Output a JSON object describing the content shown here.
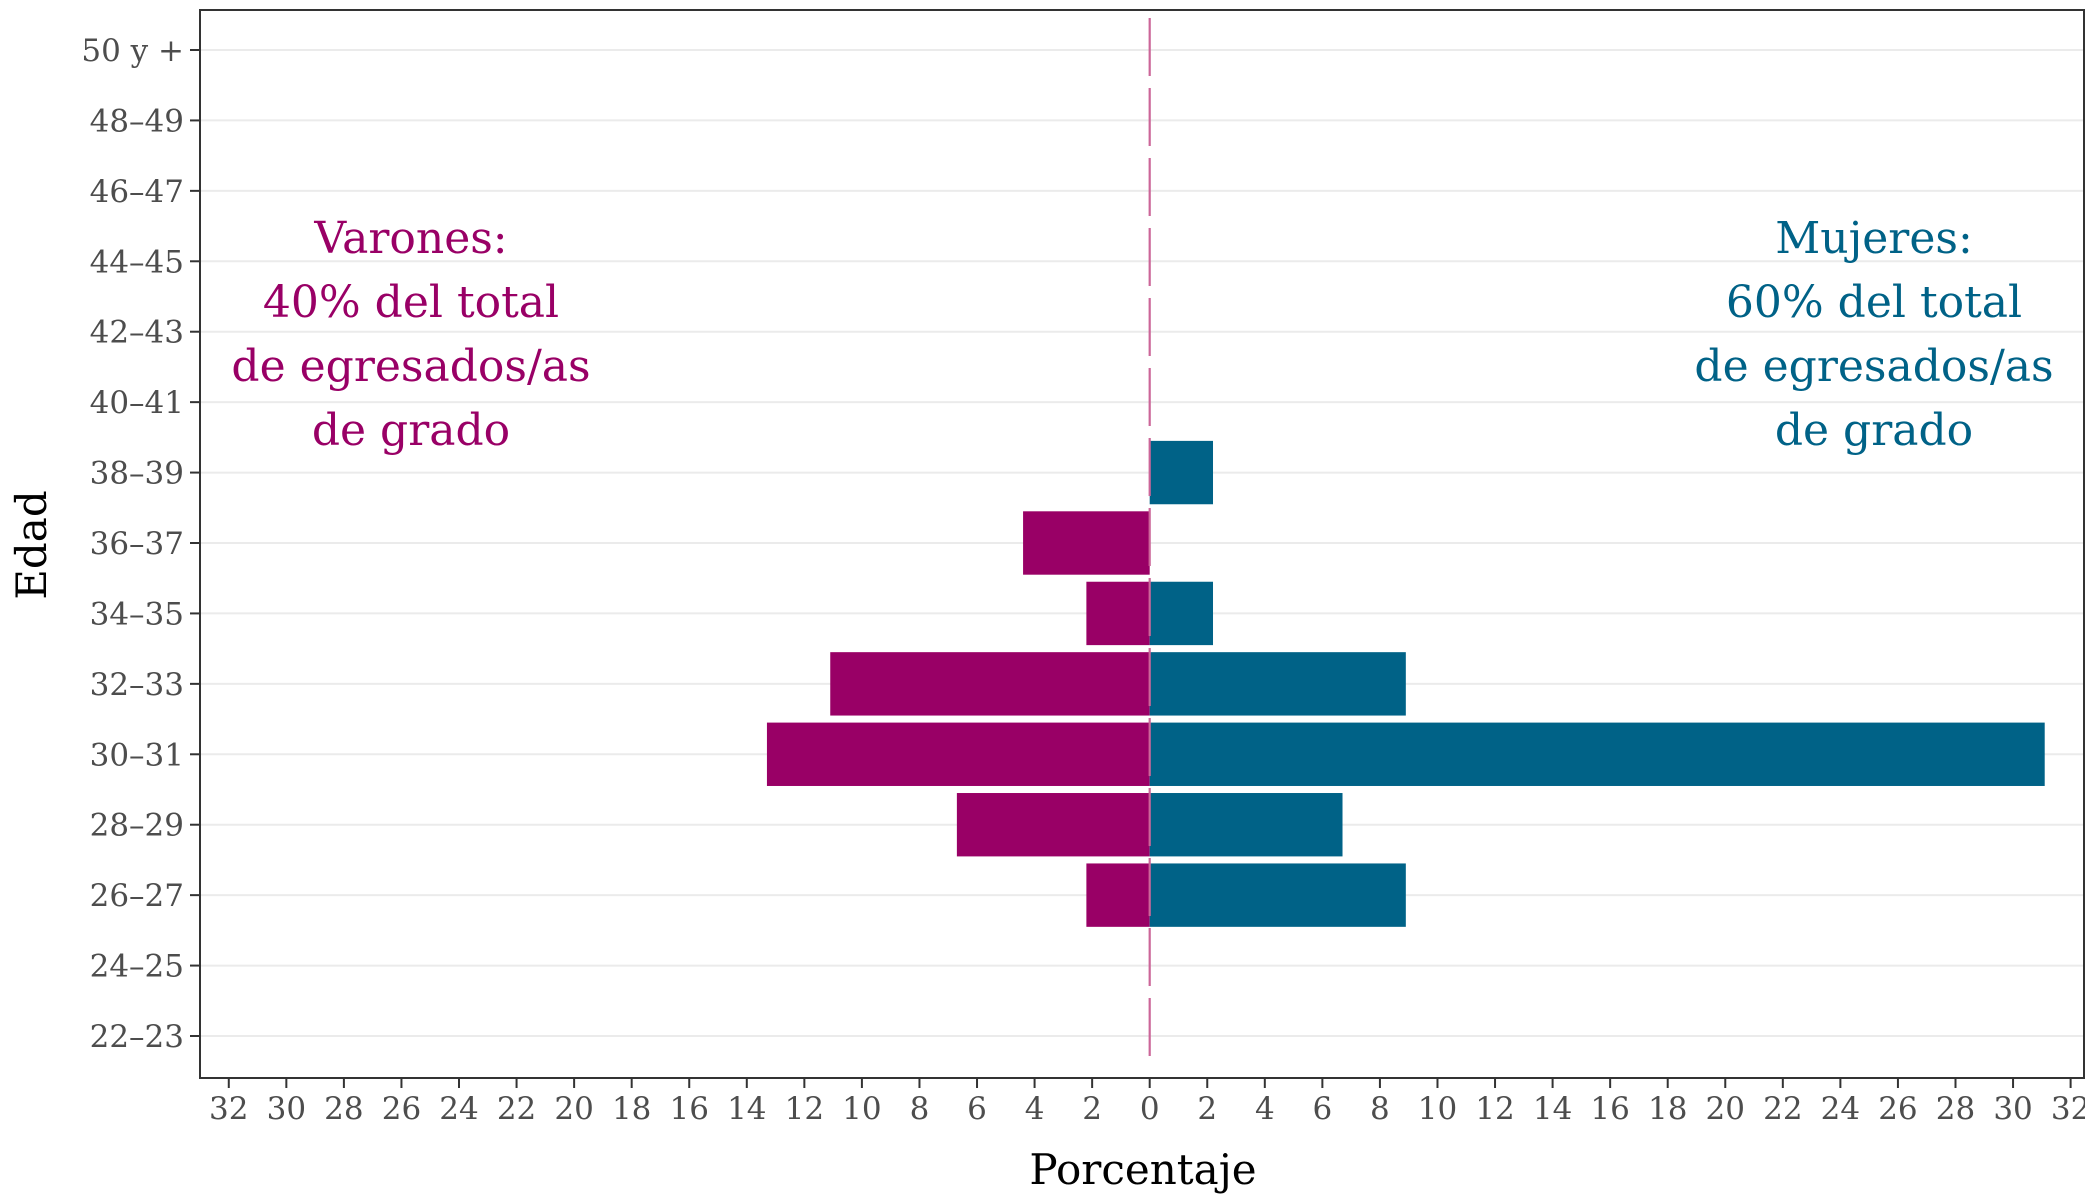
{
  "chart_data": {
    "type": "bar",
    "subtype": "population-pyramid",
    "orientation": "horizontal",
    "xlabel": "Porcentaje",
    "ylabel": "Edad",
    "categories": [
      "22–23",
      "24–25",
      "26–27",
      "28–29",
      "30–31",
      "32–33",
      "34–35",
      "36–37",
      "38–39",
      "40–41",
      "42–43",
      "44–45",
      "46–47",
      "48–49",
      "50 y +"
    ],
    "series": [
      {
        "name": "Varones",
        "side": "left",
        "color": "#990066",
        "values": [
          0,
          0,
          2.2,
          6.7,
          13.3,
          11.1,
          2.2,
          4.4,
          0,
          0,
          0,
          0,
          0,
          0,
          0
        ]
      },
      {
        "name": "Mujeres",
        "side": "right",
        "color": "#006287",
        "values": [
          0,
          0,
          8.9,
          6.7,
          31.1,
          8.9,
          2.2,
          0,
          2.2,
          0,
          0,
          0,
          0,
          0,
          0
        ]
      }
    ],
    "xlim": [
      -33,
      32.5
    ],
    "xticks": [
      -32,
      -30,
      -28,
      -26,
      -24,
      -22,
      -20,
      -18,
      -16,
      -14,
      -12,
      -10,
      -8,
      -6,
      -4,
      -2,
      0,
      2,
      4,
      6,
      8,
      10,
      12,
      14,
      16,
      18,
      20,
      22,
      24,
      26,
      28,
      30,
      32
    ],
    "xtick_labels": [
      "32",
      "30",
      "28",
      "26",
      "24",
      "22",
      "20",
      "18",
      "16",
      "14",
      "12",
      "10",
      "8",
      "6",
      "4",
      "2",
      "0",
      "2",
      "4",
      "6",
      "8",
      "10",
      "12",
      "14",
      "16",
      "18",
      "20",
      "22",
      "24",
      "26",
      "28",
      "30",
      "32"
    ],
    "grid": {
      "horizontal": true,
      "vertical": false
    },
    "zero_line": {
      "style": "dashed",
      "color": "#cc6699"
    },
    "annotations": [
      {
        "side": "left",
        "lines": [
          "Varones:",
          "40% del total",
          "de egresados/as",
          "de grado"
        ],
        "color": "#990066"
      },
      {
        "side": "right",
        "lines": [
          "Mujeres:",
          "60% del total",
          "de egresados/as",
          "de grado"
        ],
        "color": "#006287"
      }
    ]
  }
}
